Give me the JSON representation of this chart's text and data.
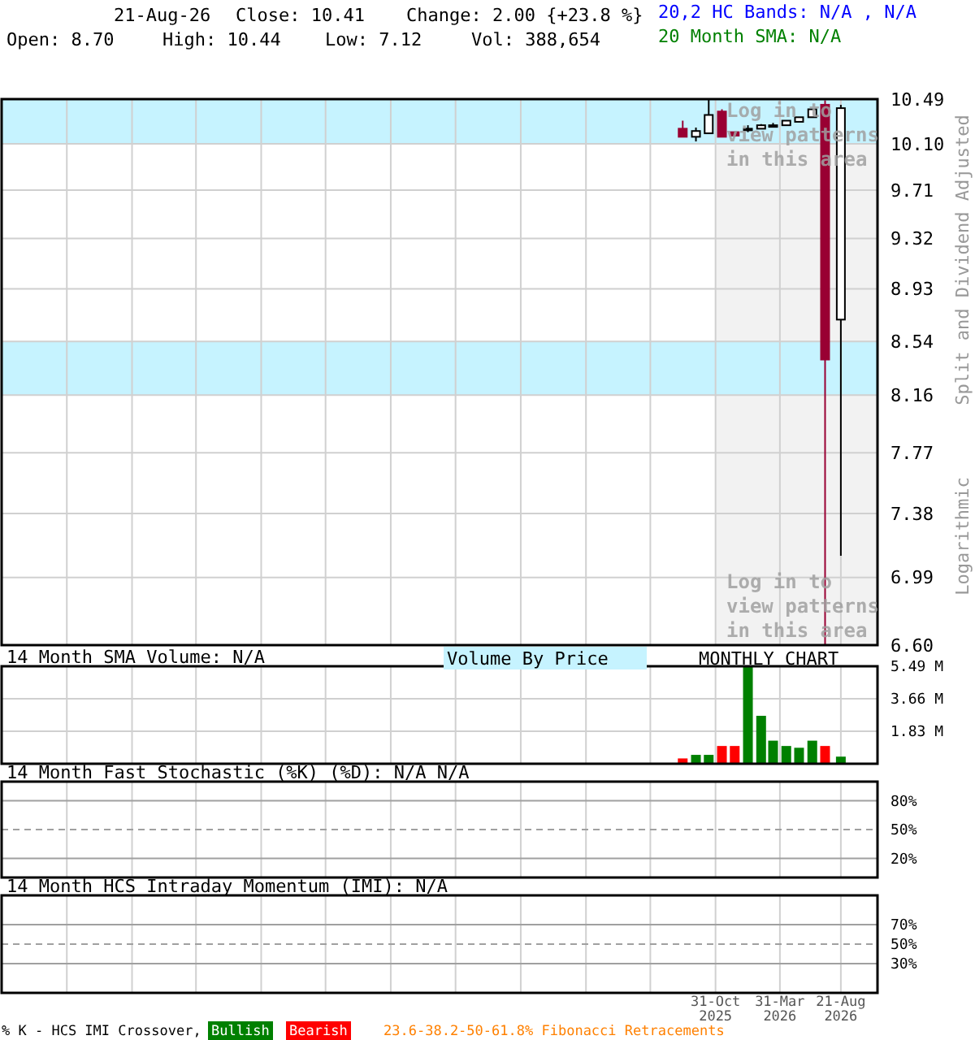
{
  "chart_data": [
    {
      "type": "candlestick",
      "log": "y",
      "grid": true,
      "tick_labels": "y",
      "x": [
        "2025-08-15",
        "2025-09-15",
        "2025-10-15",
        "2025-11-15",
        "2025-12-15",
        "2026-01-15",
        "2026-02-15",
        "2026-03-15",
        "2026-04-15",
        "2026-05-15",
        "2026-06-15",
        "2026-07-15",
        "2026-08-21"
      ],
      "ohlc": [
        [
          10.23,
          10.3,
          10.16,
          10.16
        ],
        [
          10.16,
          10.24,
          10.12,
          10.21
        ],
        [
          10.19,
          10.49,
          10.19,
          10.35
        ],
        [
          10.38,
          10.4,
          10.16,
          10.16
        ],
        [
          10.2,
          10.2,
          10.16,
          10.17
        ],
        [
          10.22,
          10.26,
          10.2,
          10.23
        ],
        [
          10.23,
          10.27,
          10.23,
          10.26
        ],
        [
          10.25,
          10.28,
          10.24,
          10.26
        ],
        [
          10.26,
          10.3,
          10.26,
          10.3
        ],
        [
          10.29,
          10.33,
          10.29,
          10.33
        ],
        [
          10.33,
          10.4,
          10.33,
          10.4
        ],
        [
          10.44,
          10.48,
          6.6,
          8.41
        ],
        [
          8.7,
          10.44,
          7.12,
          10.41
        ]
      ],
      "colors": [
        "#990033",
        "#000000",
        "#000000",
        "#990033",
        "#990033",
        "#000000",
        "#000000",
        "#000000",
        "#000000",
        "#000000",
        "#000000",
        "#990033",
        "#000000"
      ],
      "xlim": [
        "2021-03-31",
        "2026-11-15"
      ],
      "xticks": [
        {
          "value": "2021-08-31",
          "label": null
        },
        {
          "value": "2022-01-31",
          "label": null
        },
        {
          "value": "2022-06-30",
          "label": null
        },
        {
          "value": "2022-11-30",
          "label": null
        },
        {
          "value": "2023-04-30",
          "label": null
        },
        {
          "value": "2023-09-30",
          "label": null
        },
        {
          "value": "2024-02-29",
          "label": null
        },
        {
          "value": "2024-07-31",
          "label": null
        },
        {
          "value": "2024-12-31",
          "label": null
        },
        {
          "value": "2025-05-31",
          "label": null
        },
        {
          "value": "2025-10-31",
          "label": null
        },
        {
          "value": "2026-03-31",
          "label": null
        },
        {
          "value": "2026-08-21",
          "label": null
        }
      ],
      "ylim": [
        6.6,
        10.49
      ],
      "yticks": [
        {
          "value": 6.6,
          "label": "6.60"
        },
        6.99,
        7.38,
        7.77,
        8.16,
        8.54,
        8.93,
        9.32,
        9.71,
        {
          "value": 10.1,
          "label": "10.10"
        },
        10.49
      ],
      "bands": [
        {
          "axis": "x",
          "from": "2025-10-31",
          "to": "2026-11-15",
          "color": "#f2f2f2"
        },
        {
          "axis": "y",
          "from": 10.1,
          "to": 10.49,
          "color": "#c6f3ff"
        },
        {
          "axis": "y",
          "from": 8.16,
          "to": 8.54,
          "color": "#c6f3ff"
        }
      ],
      "annotations": [
        "21-Aug-26",
        "Close: 10.41",
        "Change: 2.00 {+23.8 %}",
        "Open: 8.70",
        "High: 10.44",
        "Low: 7.12",
        "Vol: 388,654",
        "20,2 HC Bands: N/A , N/A",
        "20 Month SMA: N/A",
        "Split and Dividend Adjusted",
        "Logarithmic",
        "Log in to view patterns in this area",
        "Log in to view patterns in this area"
      ]
    },
    {
      "type": "bar",
      "title": "14 Month SMA Volume: N/A",
      "grid": true,
      "tick_labels": "y",
      "x": [
        "2025-08-15",
        "2025-09-15",
        "2025-10-15",
        "2025-11-15",
        "2025-12-15",
        "2026-01-15",
        "2026-02-15",
        "2026-03-15",
        "2026-04-15",
        "2026-05-15",
        "2026-06-15",
        "2026-07-15",
        "2026-08-21"
      ],
      "values": [
        0.3,
        0.5,
        0.5,
        1.0,
        1.0,
        5.49,
        2.7,
        1.3,
        1.0,
        0.9,
        1.3,
        1.0,
        0.4
      ],
      "colors": [
        "#ff0000",
        "#008000",
        "#008000",
        "#ff0000",
        "#ff0000",
        "#008000",
        "#008000",
        "#008000",
        "#008000",
        "#008000",
        "#008000",
        "#ff0000",
        "#008000"
      ],
      "xlim": [
        "2021-03-31",
        "2026-11-15"
      ],
      "xticks": [
        {
          "value": "2021-08-31",
          "label": null
        },
        {
          "value": "2022-01-31",
          "label": null
        },
        {
          "value": "2022-06-30",
          "label": null
        },
        {
          "value": "2022-11-30",
          "label": null
        },
        {
          "value": "2023-04-30",
          "label": null
        },
        {
          "value": "2023-09-30",
          "label": null
        },
        {
          "value": "2024-02-29",
          "label": null
        },
        {
          "value": "2024-07-31",
          "label": null
        },
        {
          "value": "2024-12-31",
          "label": null
        },
        {
          "value": "2025-05-31",
          "label": null
        },
        {
          "value": "2025-10-31",
          "label": null
        },
        {
          "value": "2026-03-31",
          "label": null
        },
        {
          "value": "2026-08-21",
          "label": null
        }
      ],
      "ylim": [
        0,
        5.49
      ],
      "yticks": [
        {
          "value": 1.83,
          "label": "1.83 M"
        },
        {
          "value": 3.66,
          "label": "3.66 M"
        },
        {
          "value": 5.49,
          "label": "5.49 M"
        }
      ],
      "annotations": [
        "Volume By Price",
        "MONTHLY CHART"
      ]
    },
    {
      "type": "line",
      "title": "14 Month Fast Stochastic (%K) (%D): N/A   N/A",
      "grid": "x",
      "tick_labels": "y",
      "xlim": [
        "2021-03-31",
        "2026-11-15"
      ],
      "xticks": [
        {
          "value": "2021-08-31",
          "label": null
        },
        {
          "value": "2022-01-31",
          "label": null
        },
        {
          "value": "2022-06-30",
          "label": null
        },
        {
          "value": "2022-11-30",
          "label": null
        },
        {
          "value": "2023-04-30",
          "label": null
        },
        {
          "value": "2023-09-30",
          "label": null
        },
        {
          "value": "2024-02-29",
          "label": null
        },
        {
          "value": "2024-07-31",
          "label": null
        },
        {
          "value": "2024-12-31",
          "label": null
        },
        {
          "value": "2025-05-31",
          "label": null
        },
        {
          "value": "2025-10-31",
          "label": null
        },
        {
          "value": "2026-03-31",
          "label": null
        },
        {
          "value": "2026-08-21",
          "label": null
        }
      ],
      "ylim": [
        0,
        100
      ],
      "yticks": [
        {
          "value": 20,
          "label": "20%"
        },
        {
          "value": 50,
          "label": "50%"
        },
        {
          "value": 80,
          "label": "80%"
        }
      ],
      "ref_lines": [
        {
          "axis": "y",
          "value": 20,
          "line_style": "solid"
        },
        {
          "axis": "y",
          "value": 50,
          "line_style": "dashed"
        },
        {
          "axis": "y",
          "value": 80,
          "line_style": "solid"
        }
      ]
    },
    {
      "type": "line",
      "title": "14 Month HCS Intraday Momentum (IMI): N/A",
      "grid": "x",
      "xlim": [
        "2021-03-31",
        "2026-11-15"
      ],
      "xticks": [
        {
          "value": "2021-08-31",
          "label": null
        },
        {
          "value": "2022-01-31",
          "label": null
        },
        {
          "value": "2022-06-30",
          "label": null
        },
        {
          "value": "2022-11-30",
          "label": null
        },
        {
          "value": "2023-04-30",
          "label": null
        },
        {
          "value": "2023-09-30",
          "label": null
        },
        {
          "value": "2024-02-29",
          "label": null
        },
        {
          "value": "2024-07-31",
          "label": null
        },
        {
          "value": "2024-12-31",
          "label": null
        },
        {
          "value": "2025-05-31",
          "label": null
        },
        {
          "value": "2025-10-31",
          "label": "31-Oct\n2025"
        },
        {
          "value": "2026-03-31",
          "label": "31-Mar\n2026"
        },
        {
          "value": "2026-08-21",
          "label": "21-Aug\n2026"
        }
      ],
      "ylim": [
        0,
        100
      ],
      "yticks": [
        {
          "value": 30,
          "label": "30%"
        },
        {
          "value": 50,
          "label": "50%"
        },
        {
          "value": 70,
          "label": "70%"
        }
      ],
      "ref_lines": [
        {
          "axis": "y",
          "value": 30,
          "line_style": "solid"
        },
        {
          "axis": "y",
          "value": 50,
          "line_style": "dashed"
        },
        {
          "axis": "y",
          "value": 70,
          "line_style": "solid"
        }
      ],
      "annotations": [
        "% K - HCS IMI Crossover,",
        "Bullish",
        "Bearish",
        "23.6-38.2-50-61.8% Fibonacci Retracements"
      ]
    }
  ]
}
